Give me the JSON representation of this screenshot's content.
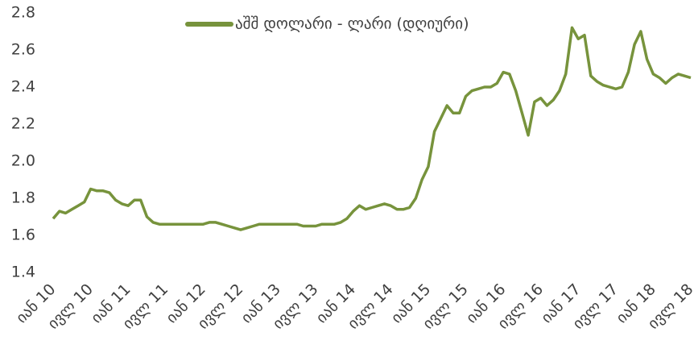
{
  "chart_data": {
    "type": "line",
    "categories": [
      "იან 10",
      null,
      null,
      null,
      null,
      null,
      "ივლ 10",
      null,
      null,
      null,
      null,
      null,
      "იან 11",
      null,
      null,
      null,
      null,
      null,
      "ივლ 11",
      null,
      null,
      null,
      null,
      null,
      "იან 12",
      null,
      null,
      null,
      null,
      null,
      "ივლ 12",
      null,
      null,
      null,
      null,
      null,
      "იან 13",
      null,
      null,
      null,
      null,
      null,
      "ივლ 13",
      null,
      null,
      null,
      null,
      null,
      "იან 14",
      null,
      null,
      null,
      null,
      null,
      "ივლ 14",
      null,
      null,
      null,
      null,
      null,
      "იან 15",
      null,
      null,
      null,
      null,
      null,
      "ივლ 15",
      null,
      null,
      null,
      null,
      null,
      "იან 16",
      null,
      null,
      null,
      null,
      null,
      "ივლ 16",
      null,
      null,
      null,
      null,
      null,
      "იან 17",
      null,
      null,
      null,
      null,
      null,
      "ივლ 17",
      null,
      null,
      null,
      null,
      null,
      "იან 18",
      null,
      null,
      null,
      null,
      null,
      "ივლ 18"
    ],
    "series": [
      {
        "name": "აშშ დოლარი - ლარი (დღიური)",
        "color": "#77933c",
        "values": [
          1.69,
          1.73,
          1.72,
          1.74,
          1.76,
          1.78,
          1.85,
          1.84,
          1.84,
          1.83,
          1.79,
          1.77,
          1.76,
          1.79,
          1.79,
          1.7,
          1.67,
          1.66,
          1.66,
          1.66,
          1.66,
          1.66,
          1.66,
          1.66,
          1.66,
          1.67,
          1.67,
          1.66,
          1.65,
          1.64,
          1.63,
          1.64,
          1.65,
          1.66,
          1.66,
          1.66,
          1.66,
          1.66,
          1.66,
          1.66,
          1.65,
          1.65,
          1.65,
          1.66,
          1.66,
          1.66,
          1.67,
          1.69,
          1.73,
          1.76,
          1.74,
          1.75,
          1.76,
          1.77,
          1.76,
          1.74,
          1.74,
          1.75,
          1.8,
          1.9,
          1.97,
          2.16,
          2.23,
          2.3,
          2.26,
          2.26,
          2.35,
          2.38,
          2.39,
          2.4,
          2.4,
          2.42,
          2.48,
          2.47,
          2.38,
          2.26,
          2.14,
          2.32,
          2.34,
          2.3,
          2.33,
          2.38,
          2.47,
          2.72,
          2.66,
          2.68,
          2.46,
          2.43,
          2.41,
          2.4,
          2.39,
          2.4,
          2.48,
          2.63,
          2.7,
          2.55,
          2.47,
          2.45,
          2.42,
          2.45,
          2.47,
          2.46,
          2.45
        ]
      }
    ],
    "ylim": [
      1.4,
      2.8
    ],
    "yticks": [
      1.4,
      1.6,
      1.8,
      {
        "value": 2,
        "label": "2.0"
      },
      2.2,
      2.4,
      2.6,
      2.8
    ],
    "legend": "top",
    "grid": false
  }
}
